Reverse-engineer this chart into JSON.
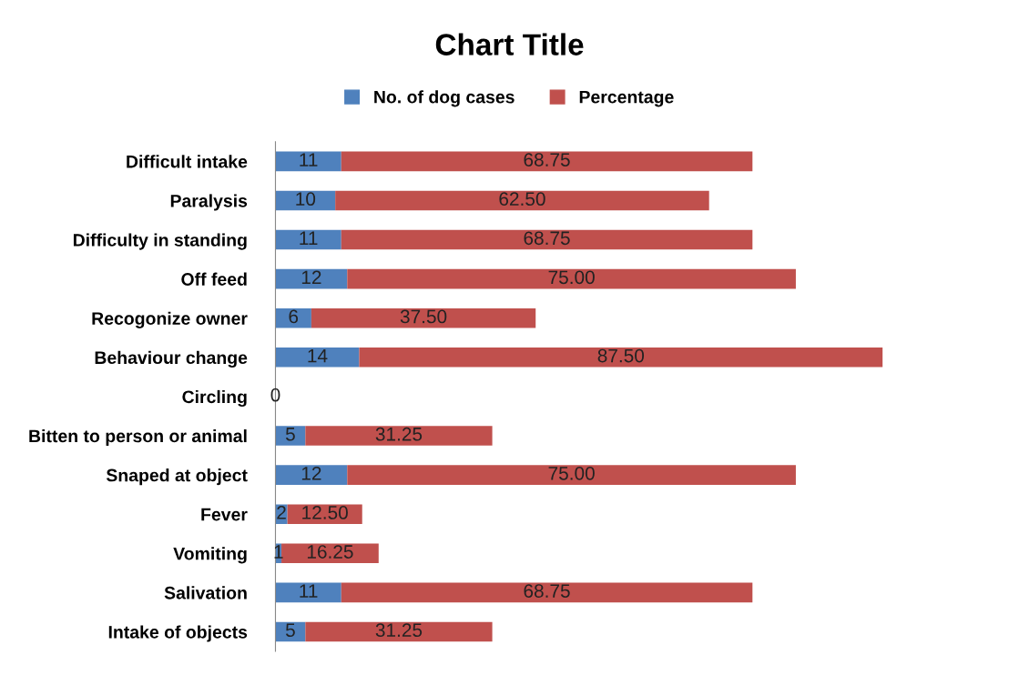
{
  "chart_data": {
    "type": "bar",
    "orientation": "horizontal",
    "stacked": true,
    "title": "Chart Title",
    "categories": [
      "Difficult intake",
      "Paralysis",
      "Difficulty in standing",
      "Off feed",
      "Recogonize owner",
      "Behaviour change",
      "Circling",
      "Bitten to person or animal",
      "Snaped at object",
      "Fever",
      "Vomiting",
      "Salivation",
      "Intake of objects"
    ],
    "series": [
      {
        "name": "No. of dog cases",
        "color": "#4f81bd",
        "values": [
          11,
          10,
          11,
          12,
          6,
          14,
          0,
          5,
          12,
          2,
          1,
          11,
          5
        ],
        "value_labels": [
          "11",
          "10",
          "11",
          "12",
          "6",
          "14",
          "0",
          "5",
          "12",
          "2",
          "1",
          "11",
          "5"
        ]
      },
      {
        "name": "Percentage",
        "color": "#c0504d",
        "values": [
          68.75,
          62.5,
          68.75,
          75,
          37.5,
          87.5,
          0,
          31.25,
          75,
          12.5,
          16.25,
          68.75,
          31.25
        ],
        "value_labels": [
          "68.75",
          "62.50",
          "68.75",
          "75.00",
          "37.50",
          "87.50",
          null,
          "31.25",
          "75.00",
          "12.50",
          "16.25",
          "68.75",
          "31.25"
        ]
      }
    ],
    "legend": "top",
    "grid": false
  }
}
